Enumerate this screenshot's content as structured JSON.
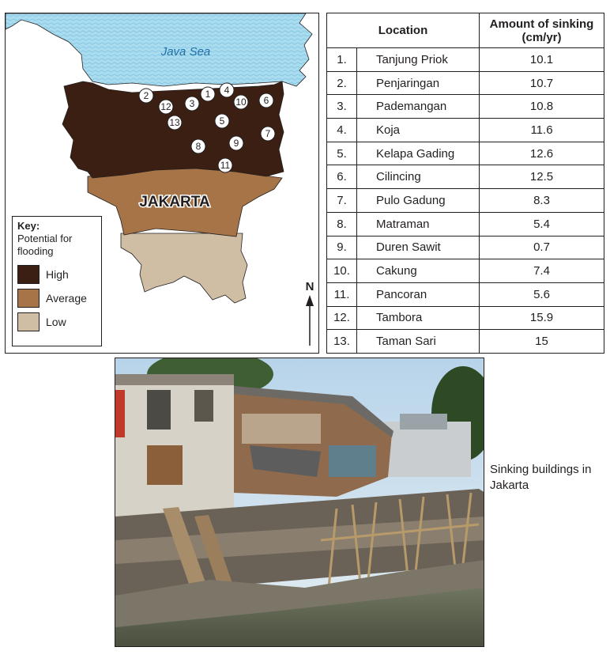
{
  "map": {
    "sea_label": "Java Sea",
    "city_label": "JAKARTA",
    "north_label": "N",
    "markers": [
      "1",
      "2",
      "3",
      "4",
      "5",
      "6",
      "7",
      "8",
      "9",
      "10",
      "11",
      "12",
      "13"
    ],
    "colors": {
      "sea": "#a9dcef",
      "high": "#3b1f12",
      "average": "#a77447",
      "low": "#cfbda4"
    }
  },
  "key": {
    "title": "Key:",
    "subtitle": "Potential for flooding",
    "items": [
      {
        "label": "High",
        "color": "#3b1f12"
      },
      {
        "label": "Average",
        "color": "#a77447"
      },
      {
        "label": "Low",
        "color": "#cfbda4"
      }
    ]
  },
  "table": {
    "headers": {
      "location": "Location",
      "sinking": "Amount of sinking (cm/yr)"
    },
    "rows": [
      {
        "num": "1.",
        "location": "Tanjung Priok",
        "value": "10.1"
      },
      {
        "num": "2.",
        "location": "Penjaringan",
        "value": "10.7"
      },
      {
        "num": "3.",
        "location": "Pademangan",
        "value": "10.8"
      },
      {
        "num": "4.",
        "location": "Koja",
        "value": "11.6"
      },
      {
        "num": "5.",
        "location": "Kelapa Gading",
        "value": "12.6"
      },
      {
        "num": "6.",
        "location": "Cilincing",
        "value": "12.5"
      },
      {
        "num": "7.",
        "location": "Pulo Gadung",
        "value": "8.3"
      },
      {
        "num": "8.",
        "location": "Matraman",
        "value": "5.4"
      },
      {
        "num": "9.",
        "location": "Duren Sawit",
        "value": "0.7"
      },
      {
        "num": "10.",
        "location": "Cakung",
        "value": "7.4"
      },
      {
        "num": "11.",
        "location": "Pancoran",
        "value": "5.6"
      },
      {
        "num": "12.",
        "location": "Tambora",
        "value": "15.9"
      },
      {
        "num": "13.",
        "location": "Taman Sari",
        "value": "15"
      }
    ]
  },
  "photo": {
    "caption": "Sinking buildings in Jakarta"
  }
}
